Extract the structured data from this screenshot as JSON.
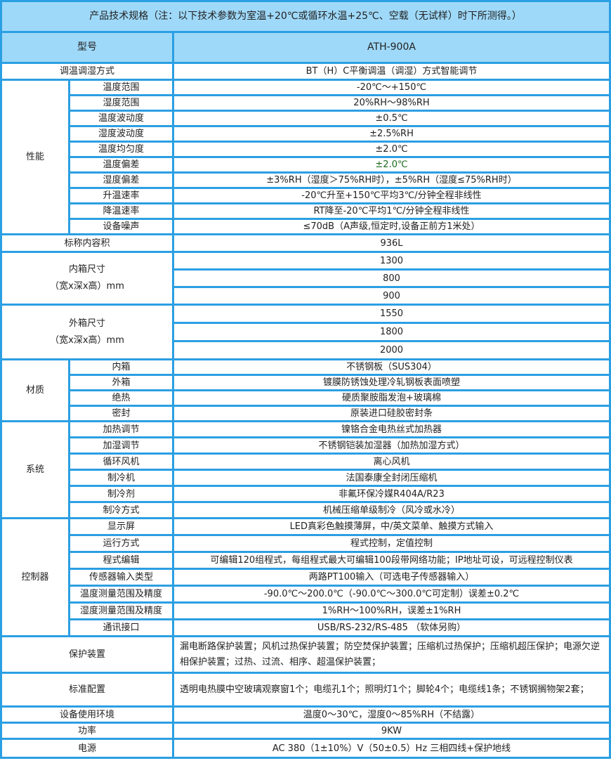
{
  "title": "产品技术规格（注：以下技术参数为室温+20℃或循环水温+25℃、空载（无试样）时下所测得。）",
  "model": {
    "label": "型号",
    "value": "ATH-900A"
  },
  "colors": {
    "border": "#2b9fe3",
    "header_bg": "#9fd9f9",
    "highlight_text": "#1e6a1e"
  },
  "sections": [
    {
      "label": "调温调湿方式",
      "value": "BT（H）C平衡调温（调湿）方式智能调节"
    },
    {
      "group": "性能",
      "items": [
        {
          "label": "温度范围",
          "value": "-20℃～+150℃"
        },
        {
          "label": "湿度范围",
          "value": "20%RH～98%RH"
        },
        {
          "label": "温度波动度",
          "value": "±0.5℃"
        },
        {
          "label": "湿度波动度",
          "value": "±2.5%RH"
        },
        {
          "label": "温度均匀度",
          "value": "±2.0℃"
        },
        {
          "label": "温度偏差",
          "value": "±2.0℃",
          "highlight": true
        },
        {
          "label": "湿度偏差",
          "value": "±3%RH（湿度＞75%RH时），±5%RH（湿度≤75%RH时）"
        },
        {
          "label": "升温速率",
          "value": "-20℃升至+150℃平均3℃/分钟全程非线性"
        },
        {
          "label": "降温速率",
          "value": "RT降至-20℃平均1℃/分钟全程非线性"
        },
        {
          "label": "设备噪声",
          "value": "≤70dB（A声级,恒定时,设备正前方1米处）"
        }
      ]
    },
    {
      "label": "标称内容积",
      "value": "936L"
    },
    {
      "label": "内箱尺寸",
      "label2": "（宽x深x高）mm",
      "values": [
        "1300",
        "800",
        "900"
      ]
    },
    {
      "label": "外箱尺寸",
      "label2": "（宽x深x高）mm",
      "values": [
        "1550",
        "1800",
        "2000"
      ]
    },
    {
      "group": "材质",
      "items": [
        {
          "label": "内箱",
          "value": "不锈钢板（SUS304）"
        },
        {
          "label": "外箱",
          "value": "镀膜防锈蚀处理冷轧钢板表面喷塑"
        },
        {
          "label": "绝热",
          "value": "硬质聚胺脂发泡+玻璃棉"
        },
        {
          "label": "密封",
          "value": "原装进口硅胶密封条"
        }
      ]
    },
    {
      "group": "系统",
      "items": [
        {
          "label": "加热调节",
          "value": "镍铬合金电热丝式加热器"
        },
        {
          "label": "加湿调节",
          "value": "不锈钢铠装加湿器（加热加湿方式）"
        },
        {
          "label": "循环风机",
          "value": "离心风机"
        },
        {
          "label": "制冷机",
          "value": "法国泰康全封闭压缩机"
        },
        {
          "label": "制冷剂",
          "value": "非氟环保冷媒R404A/R23"
        },
        {
          "label": "制冷方式",
          "value": "机械压缩单级制冷（风冷或水冷）"
        }
      ]
    },
    {
      "group": "控制器",
      "items": [
        {
          "label": "显示屏",
          "value": "LED真彩色触摸薄屏，中/英文菜单、触摸方式输入"
        },
        {
          "label": "运行方式",
          "value": "程式控制，定值控制"
        },
        {
          "label": "程式编辑",
          "value": "可编辑120组程式，每组程式最大可编辑100段带网络功能；IP地址可设，可远程控制仪表"
        },
        {
          "label": "传感器输入类型",
          "value": "两路PT100输入（可选电子传感器输入）"
        },
        {
          "label": "温度测量范围及精度",
          "value": "-90.0℃～200.0℃（-90.0℃～300.0℃可定制）误差±0.2℃"
        },
        {
          "label": "湿度测量范围及精度",
          "value": "1%RH～100%RH，误差±1%RH"
        },
        {
          "label": "通讯接口",
          "value": "USB/RS-232/RS-485 （软体另购）"
        }
      ]
    },
    {
      "label": "保护装置",
      "value": "漏电断路保护装置；风机过热保护装置；防空焚保护装置；压缩机过热保护；压缩机超压保护；电源欠逆相保护装置；过热、过流、相序、超温保护装置；",
      "wrap": true
    },
    {
      "label": "标准配置",
      "value": "透明电热膜中空玻璃观察窗1个；电缆孔1个；照明灯1个；脚轮4个；电缆线1条；不锈钢搁物架2套；",
      "wrap": true
    },
    {
      "label": "设备使用环境",
      "value": "温度0～30℃，湿度0～85%RH（不结露）"
    },
    {
      "label": "功率",
      "value": "9KW"
    },
    {
      "label": "电源",
      "value": "AC 380（1±10%）V（50±0.5）Hz 三相四线+保护地线"
    }
  ]
}
